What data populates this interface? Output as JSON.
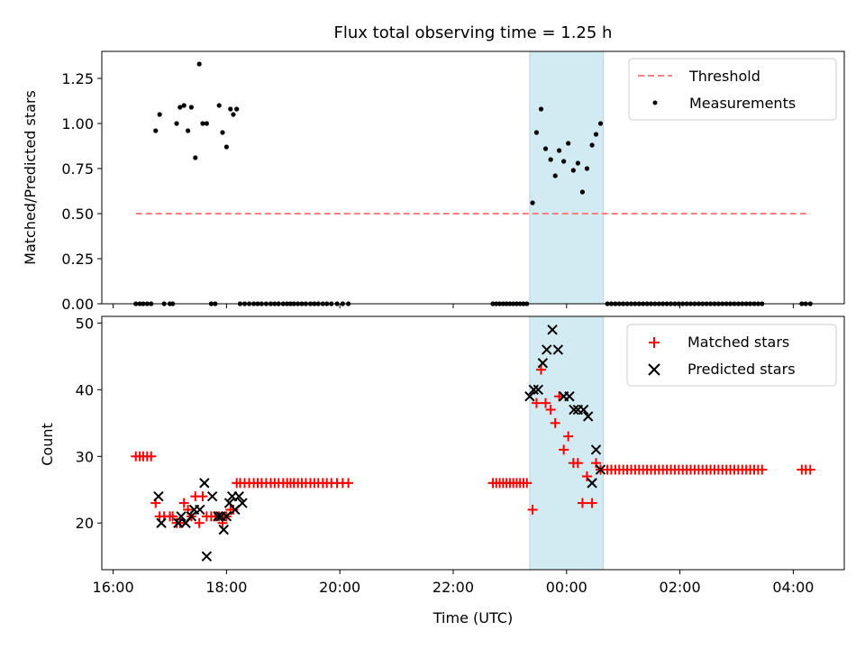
{
  "title": "Flux total observing time = 1.25 h",
  "chart_data": [
    {
      "type": "scatter",
      "panel": "top",
      "title": "Flux total observing time = 1.25 h",
      "xlabel": "",
      "ylabel": "Matched/Predicted stars",
      "x_unit": "hours from 00:00 UTC",
      "xlim": [
        -8.2,
        4.9
      ],
      "ylim": [
        0,
        1.4
      ],
      "yticks": [
        0.0,
        0.25,
        0.5,
        0.75,
        1.0,
        1.25
      ],
      "ytick_labels": [
        "0.00",
        "0.25",
        "0.50",
        "0.75",
        "1.00",
        "1.25"
      ],
      "shaded_region": [
        -0.65,
        0.65
      ],
      "legend_position": "upper right",
      "legend": [
        "Threshold",
        "Measurements"
      ],
      "threshold": {
        "name": "Threshold",
        "value": 0.5,
        "x_range": [
          -7.6,
          4.3
        ],
        "color": "#ff7f7f"
      },
      "series": [
        {
          "name": "Measurements",
          "color": "#000000",
          "x": [
            -7.6,
            -7.53,
            -7.47,
            -7.4,
            -7.33,
            -7.25,
            -7.18,
            -7.1,
            -7.0,
            -6.95,
            -6.88,
            -6.82,
            -6.75,
            -6.68,
            -6.62,
            -6.55,
            -6.48,
            -6.42,
            -6.35,
            -6.27,
            -6.2,
            -6.13,
            -6.07,
            -6.0,
            -5.93,
            -5.88,
            -5.82,
            -5.76,
            -5.68,
            -5.6,
            -5.52,
            -5.45,
            -5.38,
            -5.3,
            -5.22,
            -5.15,
            -5.08,
            -5.0,
            -4.93,
            -4.87,
            -4.81,
            -4.74,
            -4.67,
            -4.6,
            -4.52,
            -4.45,
            -4.38,
            -4.3,
            -4.23,
            -4.15,
            -4.05,
            -3.95,
            -3.85,
            -1.3,
            -1.24,
            -1.18,
            -1.12,
            -1.06,
            -1.0,
            -0.94,
            -0.88,
            -0.82,
            -0.76,
            -0.7,
            -0.6,
            -0.53,
            -0.45,
            -0.37,
            -0.28,
            -0.2,
            -0.13,
            -0.05,
            0.03,
            0.12,
            0.2,
            0.28,
            0.36,
            0.45,
            0.52,
            0.6,
            0.72,
            0.79,
            0.86,
            0.93,
            1.0,
            1.07,
            1.14,
            1.21,
            1.28,
            1.35,
            1.42,
            1.49,
            1.56,
            1.63,
            1.7,
            1.77,
            1.84,
            1.91,
            1.98,
            2.05,
            2.12,
            2.19,
            2.26,
            2.33,
            2.4,
            2.47,
            2.54,
            2.61,
            2.68,
            2.75,
            2.82,
            2.89,
            2.96,
            3.03,
            3.1,
            3.17,
            3.24,
            3.31,
            3.38,
            3.45,
            4.15,
            4.22,
            4.3
          ],
          "y": [
            0,
            0,
            0,
            0,
            0,
            0.96,
            1.05,
            0,
            0,
            0,
            1.0,
            1.09,
            1.1,
            0.96,
            1.09,
            0.81,
            1.33,
            1.0,
            1.0,
            0,
            0,
            1.1,
            0.95,
            0.87,
            1.08,
            1.05,
            1.08,
            0,
            0,
            0,
            0,
            0,
            0,
            0,
            0,
            0,
            0,
            0,
            0,
            0,
            0,
            0,
            0,
            0,
            0,
            0,
            0,
            0,
            0,
            0,
            0,
            0,
            0,
            0,
            0,
            0,
            0,
            0,
            0,
            0,
            0,
            0,
            0,
            0,
            0.56,
            0.95,
            1.08,
            0.86,
            0.8,
            0.71,
            0.85,
            0.79,
            0.89,
            0.74,
            0.78,
            0.62,
            0.75,
            0.88,
            0.94,
            1.0,
            0,
            0,
            0,
            0,
            0,
            0,
            0,
            0,
            0,
            0,
            0,
            0,
            0,
            0,
            0,
            0,
            0,
            0,
            0,
            0,
            0,
            0,
            0,
            0,
            0,
            0,
            0,
            0,
            0,
            0,
            0,
            0,
            0,
            0,
            0,
            0,
            0,
            0,
            0,
            0,
            0,
            0,
            0
          ]
        }
      ]
    },
    {
      "type": "scatter",
      "panel": "bottom",
      "title": "",
      "xlabel": "Time (UTC)",
      "ylabel": "Count",
      "x_unit": "hours from 00:00 UTC",
      "xlim": [
        -8.2,
        4.9
      ],
      "ylim": [
        13,
        51
      ],
      "xticks": [
        -8,
        -6,
        -4,
        -2,
        0,
        2,
        4
      ],
      "xtick_labels": [
        "16:00",
        "18:00",
        "20:00",
        "22:00",
        "00:00",
        "02:00",
        "04:00"
      ],
      "yticks": [
        20,
        30,
        40,
        50
      ],
      "ytick_labels": [
        "20",
        "30",
        "40",
        "50"
      ],
      "shaded_region": [
        -0.65,
        0.65
      ],
      "legend_position": "upper right",
      "legend": [
        "Matched stars",
        "Predicted stars"
      ],
      "series": [
        {
          "name": "Matched stars",
          "marker": "+",
          "color": "#ff0000",
          "x": [
            -7.6,
            -7.53,
            -7.47,
            -7.4,
            -7.33,
            -7.25,
            -7.18,
            -7.1,
            -7.0,
            -6.95,
            -6.88,
            -6.82,
            -6.75,
            -6.68,
            -6.62,
            -6.55,
            -6.48,
            -6.42,
            -6.35,
            -6.27,
            -6.2,
            -6.13,
            -6.07,
            -6.0,
            -5.93,
            -5.88,
            -5.82,
            -5.76,
            -5.68,
            -5.6,
            -5.52,
            -5.45,
            -5.38,
            -5.3,
            -5.22,
            -5.15,
            -5.08,
            -5.0,
            -4.93,
            -4.87,
            -4.81,
            -4.74,
            -4.67,
            -4.6,
            -4.52,
            -4.45,
            -4.38,
            -4.3,
            -4.23,
            -4.15,
            -4.05,
            -3.95,
            -3.85,
            -1.3,
            -1.24,
            -1.18,
            -1.12,
            -1.06,
            -1.0,
            -0.94,
            -0.88,
            -0.82,
            -0.76,
            -0.7,
            -0.6,
            -0.53,
            -0.45,
            -0.37,
            -0.28,
            -0.2,
            -0.13,
            -0.05,
            0.03,
            0.12,
            0.2,
            0.28,
            0.36,
            0.45,
            0.52,
            0.6,
            0.72,
            0.79,
            0.86,
            0.93,
            1.0,
            1.07,
            1.14,
            1.21,
            1.28,
            1.35,
            1.42,
            1.49,
            1.56,
            1.63,
            1.7,
            1.77,
            1.84,
            1.91,
            1.98,
            2.05,
            2.12,
            2.19,
            2.26,
            2.33,
            2.4,
            2.47,
            2.54,
            2.61,
            2.68,
            2.75,
            2.82,
            2.89,
            2.96,
            3.03,
            3.1,
            3.17,
            3.24,
            3.31,
            3.38,
            3.45,
            4.15,
            4.22,
            4.3
          ],
          "y": [
            30,
            30,
            30,
            30,
            30,
            23,
            21,
            21,
            21,
            21,
            20,
            20,
            23,
            22,
            21,
            24,
            20,
            24,
            21,
            21,
            21,
            21,
            20,
            21,
            22,
            22,
            26,
            26,
            26,
            26,
            26,
            26,
            26,
            26,
            26,
            26,
            26,
            26,
            26,
            26,
            26,
            26,
            26,
            26,
            26,
            26,
            26,
            26,
            26,
            26,
            26,
            26,
            26,
            26,
            26,
            26,
            26,
            26,
            26,
            26,
            26,
            26,
            26,
            26,
            22,
            38,
            43,
            38,
            37,
            35,
            39,
            31,
            33,
            29,
            29,
            23,
            27,
            23,
            29,
            28,
            28,
            28,
            28,
            28,
            28,
            28,
            28,
            28,
            28,
            28,
            28,
            28,
            28,
            28,
            28,
            28,
            28,
            28,
            28,
            28,
            28,
            28,
            28,
            28,
            28,
            28,
            28,
            28,
            28,
            28,
            28,
            28,
            28,
            28,
            28,
            28,
            28,
            28,
            28,
            28,
            28,
            28,
            28
          ]
        },
        {
          "name": "Predicted stars",
          "marker": "x",
          "color": "#000000",
          "x": [
            -7.2,
            -7.15,
            -6.85,
            -6.8,
            -6.72,
            -6.62,
            -6.57,
            -6.47,
            -6.39,
            -6.35,
            -6.25,
            -6.15,
            -6.1,
            -6.05,
            -6.0,
            -5.95,
            -5.9,
            -5.85,
            -5.78,
            -5.72,
            -0.65,
            -0.58,
            -0.5,
            -0.42,
            -0.35,
            -0.25,
            -0.15,
            -0.05,
            0.05,
            0.13,
            0.2,
            0.3,
            0.38,
            0.45,
            0.52,
            0.6
          ],
          "y": [
            24,
            20,
            20,
            21,
            20,
            21,
            22,
            22,
            26,
            15,
            24,
            21,
            21,
            19,
            21,
            23,
            24,
            22,
            24,
            23,
            39,
            40,
            40,
            44,
            46,
            49,
            46,
            39,
            39,
            37,
            37,
            37,
            36,
            26,
            31,
            28
          ]
        }
      ]
    }
  ]
}
